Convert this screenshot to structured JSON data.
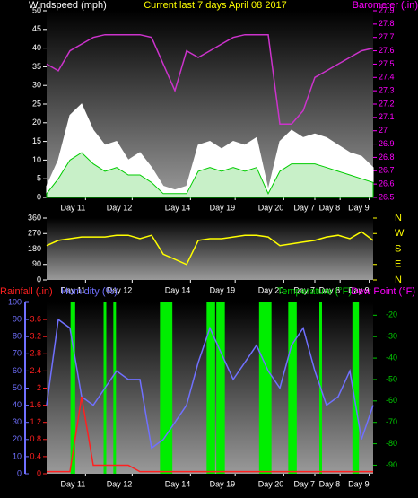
{
  "chart_data": [
    {
      "type": "line",
      "title": "Current last 7 days April 08 2017",
      "y_label": "Windspeed (mph)",
      "y2_label": "Barometer (.in)",
      "title_color": "#ffff00",
      "y_color": "#ffffff",
      "y2_color": "#ff00ff",
      "xlim": [
        0,
        168
      ],
      "ylim": [
        0,
        50
      ],
      "y2lim": [
        26.5,
        27.9
      ],
      "xticks": [
        {
          "value": 20,
          "label": "Day 11"
        },
        {
          "value": 44,
          "label": "Day 12"
        },
        {
          "value": 74,
          "label": "Day 14"
        },
        {
          "value": 97,
          "label": "Day 19"
        },
        {
          "value": 122,
          "label": "Day 20"
        },
        {
          "value": 138,
          "label": "Day 7"
        },
        {
          "value": 151,
          "label": "Day 8"
        },
        {
          "value": 166,
          "label": "Day 9"
        }
      ],
      "yticks": [
        0,
        5,
        10,
        15,
        20,
        25,
        30,
        35,
        40,
        45,
        50
      ],
      "y2ticks": [
        26.5,
        26.6,
        26.7,
        26.8,
        26.9,
        27,
        27.1,
        27.2,
        27.3,
        27.4,
        27.5,
        27.6,
        27.7,
        27.8,
        27.9
      ],
      "x": [
        0,
        6,
        12,
        18,
        24,
        30,
        36,
        42,
        48,
        54,
        60,
        66,
        72,
        78,
        84,
        90,
        96,
        102,
        108,
        114,
        120,
        126,
        132,
        138,
        144,
        150,
        156,
        162,
        168
      ],
      "series": [
        {
          "color": "#ffffff",
          "style": "area",
          "axis": "y",
          "values": [
            3,
            10,
            22,
            25,
            18,
            14,
            15,
            10,
            12,
            8,
            3,
            2,
            3,
            14,
            15,
            13,
            15,
            14,
            16,
            2,
            15,
            18,
            16,
            17,
            16,
            14,
            12,
            11,
            8
          ]
        },
        {
          "color": "#00cc00",
          "style": "area",
          "axis": "y",
          "values": [
            1,
            5,
            10,
            12,
            9,
            7,
            8,
            6,
            6,
            4,
            1,
            1,
            1,
            7,
            8,
            7,
            8,
            7,
            8,
            1,
            7,
            9,
            9,
            9,
            8,
            7,
            6,
            5,
            4
          ]
        },
        {
          "color": "#cc33cc",
          "style": "line",
          "axis": "y2",
          "values": [
            27.5,
            27.45,
            27.6,
            27.65,
            27.7,
            27.72,
            27.72,
            27.72,
            27.72,
            27.7,
            27.5,
            27.3,
            27.6,
            27.55,
            27.6,
            27.65,
            27.7,
            27.72,
            27.72,
            27.72,
            27.05,
            27.05,
            27.15,
            27.4,
            27.45,
            27.5,
            27.55,
            27.6,
            27.62
          ]
        }
      ]
    },
    {
      "type": "line",
      "y_color": "#ffffff",
      "y2_color": "#ffff00",
      "xlim": [
        0,
        168
      ],
      "ylim": [
        0,
        360
      ],
      "y2lim": [
        0,
        360
      ],
      "xticks": [
        {
          "value": 20,
          "label": "Day 11"
        },
        {
          "value": 44,
          "label": "Day 12"
        },
        {
          "value": 74,
          "label": "Day 14"
        },
        {
          "value": 97,
          "label": "Day 19"
        },
        {
          "value": 122,
          "label": "Day 20"
        },
        {
          "value": 138,
          "label": "Day 7"
        },
        {
          "value": 151,
          "label": "Day 8"
        },
        {
          "value": 166,
          "label": "Day 9"
        }
      ],
      "yticks": [
        0,
        90,
        180,
        270,
        360
      ],
      "y2ticks": [
        {
          "value": 360,
          "label": "N"
        },
        {
          "value": 270,
          "label": "W"
        },
        {
          "value": 180,
          "label": "S"
        },
        {
          "value": 90,
          "label": "E"
        },
        {
          "value": 0,
          "label": "N"
        }
      ],
      "x": [
        0,
        6,
        12,
        18,
        24,
        30,
        36,
        42,
        48,
        54,
        60,
        66,
        72,
        78,
        84,
        90,
        96,
        102,
        108,
        114,
        120,
        126,
        132,
        138,
        144,
        150,
        156,
        162,
        168
      ],
      "series": [
        {
          "color": "#ffff00",
          "style": "line",
          "axis": "y",
          "values": [
            200,
            230,
            240,
            250,
            250,
            250,
            260,
            260,
            240,
            260,
            150,
            120,
            90,
            230,
            240,
            240,
            250,
            260,
            260,
            250,
            200,
            210,
            220,
            230,
            250,
            260,
            240,
            280,
            230
          ]
        }
      ]
    },
    {
      "type": "line",
      "y_label": "Rainfall (.in)",
      "y3_label": "Humidity (%)",
      "y2_label": "Temperature (°F)",
      "y2_label_2": "Dew Point (°F)",
      "y_color": "#ff2020",
      "y3_color": "#7070ff",
      "y2_color": "#00cc00",
      "y2_label_2_color": "#ff00ff",
      "xlim": [
        0,
        168
      ],
      "ylim": [
        0,
        4
      ],
      "y3lim": [
        0,
        100
      ],
      "y2lim": [
        -94,
        -14
      ],
      "xticks": [
        {
          "value": 20,
          "label": "Day 11"
        },
        {
          "value": 44,
          "label": "Day 12"
        },
        {
          "value": 74,
          "label": "Day 14"
        },
        {
          "value": 97,
          "label": "Day 19"
        },
        {
          "value": 122,
          "label": "Day 20"
        },
        {
          "value": 138,
          "label": "Day 7"
        },
        {
          "value": 151,
          "label": "Day 8"
        },
        {
          "value": 166,
          "label": "Day 9"
        }
      ],
      "yticks": [
        0,
        0.4,
        0.8,
        1.2,
        1.6,
        2,
        2.4,
        2.8,
        3.2,
        3.6
      ],
      "y3ticks": [
        0,
        10,
        20,
        30,
        40,
        50,
        60,
        70,
        80,
        90,
        100
      ],
      "y2ticks": [
        -20,
        -30,
        -40,
        -50,
        -60,
        -70,
        -80,
        -90
      ],
      "x": [
        0,
        6,
        12,
        18,
        24,
        30,
        36,
        42,
        48,
        54,
        60,
        66,
        72,
        78,
        84,
        90,
        96,
        102,
        108,
        114,
        120,
        126,
        132,
        138,
        144,
        150,
        156,
        162,
        168
      ],
      "series": [
        {
          "color": "#00ee00",
          "style": "bars",
          "axis": "y2",
          "x": [
            13,
            14,
            30,
            35,
            59,
            60,
            61,
            62,
            63,
            64,
            83,
            84,
            85,
            86,
            88,
            89,
            90,
            91,
            110,
            111,
            112,
            113,
            114,
            115,
            125,
            126,
            127,
            128,
            141,
            158,
            159,
            160
          ],
          "values": [
            -14,
            -14,
            -14,
            -14,
            -14,
            -14,
            -14,
            -14,
            -14,
            -14,
            -14,
            -14,
            -14,
            -14,
            -14,
            -14,
            -14,
            -14,
            -14,
            -14,
            -14,
            -14,
            -14,
            -14,
            -14,
            -14,
            -14,
            -14,
            -14,
            -14,
            -14,
            -14
          ]
        },
        {
          "color": "#7070ff",
          "style": "line",
          "axis": "y3",
          "values": [
            40,
            90,
            85,
            45,
            40,
            50,
            60,
            55,
            55,
            15,
            20,
            30,
            40,
            65,
            85,
            70,
            55,
            65,
            75,
            60,
            50,
            75,
            85,
            60,
            40,
            45,
            60,
            20,
            40
          ]
        },
        {
          "color": "#ff2020",
          "style": "line",
          "axis": "y",
          "values": [
            0.05,
            0.05,
            0.05,
            1.8,
            0.2,
            0.2,
            0.2,
            0.2,
            0.05,
            0.05,
            0.05,
            0.05,
            0.05,
            0.05,
            0.05,
            0.05,
            0.05,
            0.05,
            0.05,
            0.05,
            0.05,
            0.05,
            0.05,
            0.05,
            0.05,
            0.05,
            0.05,
            0.05,
            0.05
          ]
        }
      ]
    }
  ]
}
